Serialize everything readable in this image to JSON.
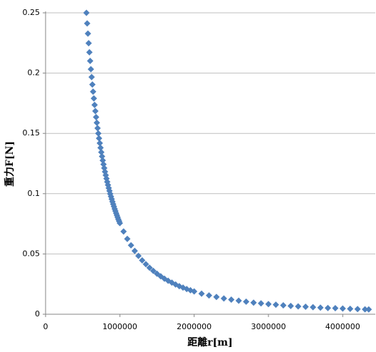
{
  "chart_data": {
    "type": "scatter",
    "x_label": "距離r[m]",
    "y_label": "重力F[N]",
    "xlim": [
      0,
      4400000
    ],
    "xticks": [
      0,
      1000000,
      2000000,
      3000000,
      4000000
    ],
    "ylim": [
      0,
      0.25
    ],
    "yticks": [
      0,
      0.05,
      0.1,
      0.15,
      0.2,
      0.25
    ],
    "grid": true,
    "series": [
      {
        "color": "#4f81bd",
        "x": [
          550000,
          560000,
          570000,
          580000,
          590000,
          600000,
          610000,
          620000,
          630000,
          640000,
          650000,
          660000,
          670000,
          680000,
          690000,
          700000,
          710000,
          720000,
          730000,
          740000,
          750000,
          760000,
          770000,
          780000,
          790000,
          800000,
          810000,
          820000,
          830000,
          840000,
          850000,
          860000,
          870000,
          880000,
          890000,
          900000,
          910000,
          920000,
          930000,
          940000,
          950000,
          960000,
          970000,
          980000,
          990000,
          1000000,
          1050000,
          1100000,
          1150000,
          1200000,
          1250000,
          1300000,
          1350000,
          1400000,
          1450000,
          1500000,
          1550000,
          1600000,
          1650000,
          1700000,
          1750000,
          1800000,
          1850000,
          1900000,
          1950000,
          2000000,
          2100000,
          2200000,
          2300000,
          2400000,
          2500000,
          2600000,
          2700000,
          2800000,
          2900000,
          3000000,
          3100000,
          3200000,
          3300000,
          3400000,
          3500000,
          3600000,
          3700000,
          3800000,
          3900000,
          4000000,
          4100000,
          4200000,
          4300000,
          4350000
        ],
        "values": [
          0.25,
          0.2412,
          0.2328,
          0.2248,
          0.2173,
          0.2101,
          0.2032,
          0.1967,
          0.1905,
          0.1846,
          0.179,
          0.1736,
          0.1685,
          0.1635,
          0.1588,
          0.1543,
          0.15,
          0.1459,
          0.1419,
          0.1381,
          0.1344,
          0.1309,
          0.1276,
          0.1243,
          0.1212,
          0.1182,
          0.1153,
          0.1125,
          0.1098,
          0.1072,
          0.1047,
          0.1023,
          0.0999,
          0.0977,
          0.0955,
          0.0934,
          0.0913,
          0.0894,
          0.0874,
          0.0856,
          0.0838,
          0.0821,
          0.0804,
          0.0787,
          0.0772,
          0.0756,
          0.0686,
          0.0625,
          0.0572,
          0.0525,
          0.0484,
          0.0447,
          0.0415,
          0.0386,
          0.036,
          0.0336,
          0.0315,
          0.0295,
          0.0278,
          0.0262,
          0.0247,
          0.0233,
          0.0221,
          0.0209,
          0.0199,
          0.0189,
          0.0171,
          0.0156,
          0.0143,
          0.0131,
          0.0121,
          0.0112,
          0.0104,
          0.0096,
          0.009,
          0.0084,
          0.0079,
          0.0074,
          0.0069,
          0.0065,
          0.0062,
          0.0058,
          0.0055,
          0.0052,
          0.005,
          0.0047,
          0.0045,
          0.0043,
          0.0041,
          0.004
        ]
      }
    ]
  }
}
